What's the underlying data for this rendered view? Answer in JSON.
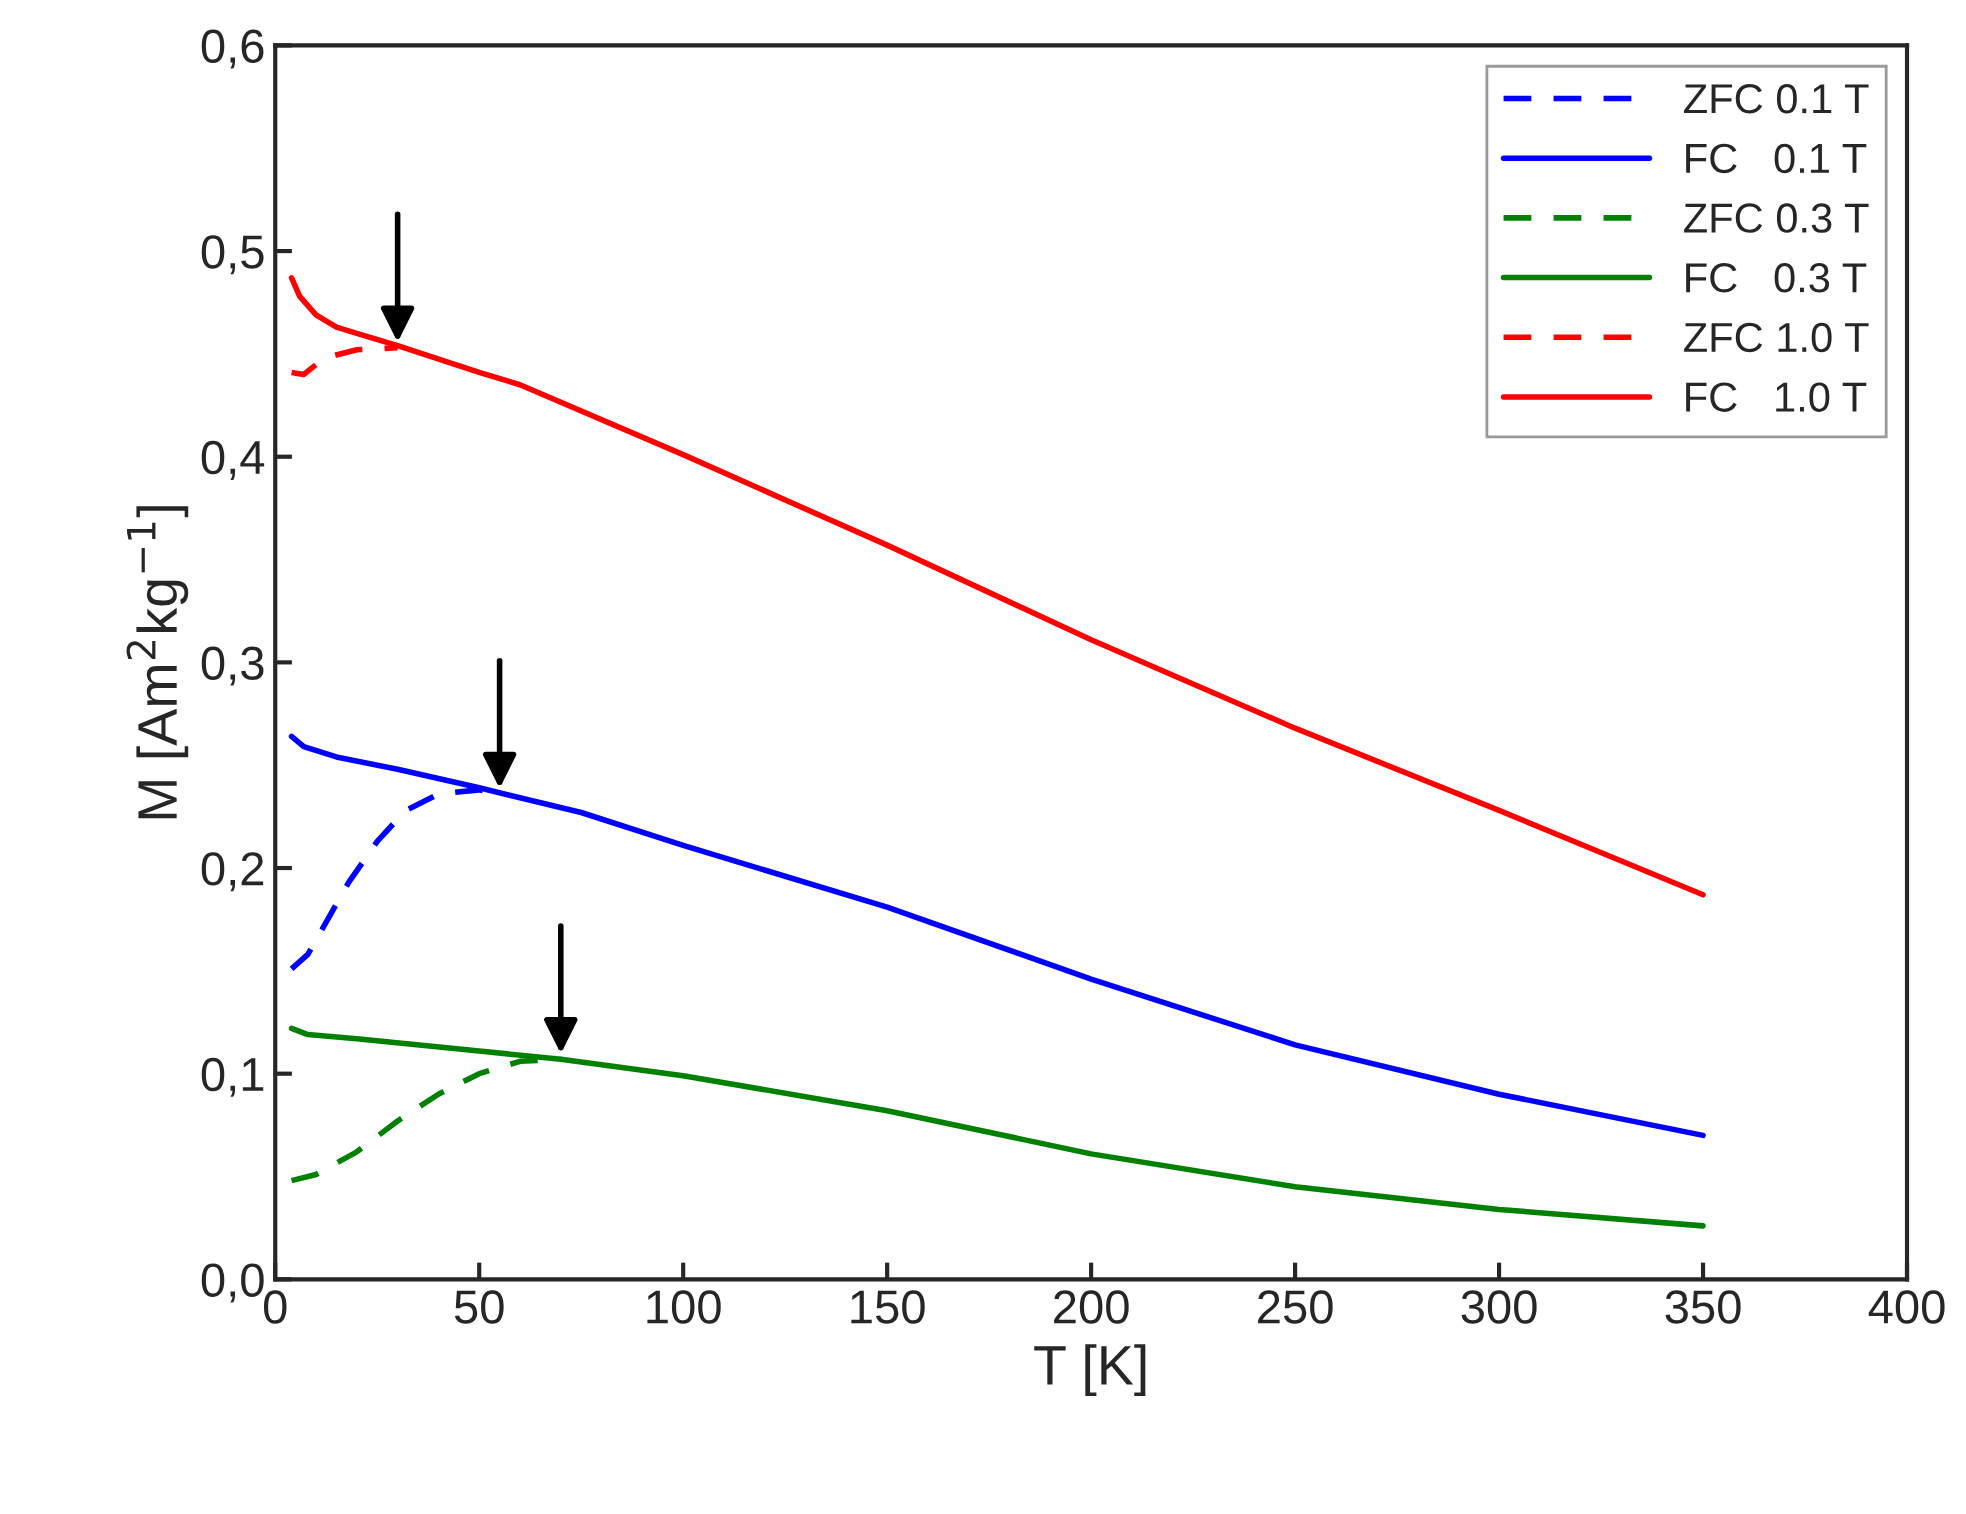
{
  "chart_data": {
    "type": "line",
    "xlabel": "T [K]",
    "ylabel": "M [Am$^{2}$kg$^{−1}$]",
    "xlim": [
      0,
      400
    ],
    "xticks": [
      0,
      50,
      100,
      150,
      200,
      250,
      300,
      350,
      400
    ],
    "ylim": [
      0,
      0.6
    ],
    "yticks": [
      {
        "value": 0.0,
        "label": "0,0"
      },
      {
        "value": 0.1,
        "label": "0,1"
      },
      {
        "value": 0.2,
        "label": "0,2"
      },
      {
        "value": 0.3,
        "label": "0,3"
      },
      {
        "value": 0.4,
        "label": "0,4"
      },
      {
        "value": 0.5,
        "label": "0,5"
      },
      {
        "value": 0.6,
        "label": "0,6"
      }
    ],
    "legend": "top right",
    "grid": false,
    "series": [
      {
        "name": "ZFC 0.1 T",
        "color": "#0000ff",
        "line_style": "dashed",
        "x": [
          4,
          8,
          12,
          18,
          25,
          32,
          40,
          50,
          55
        ],
        "values": [
          0.151,
          0.158,
          0.172,
          0.193,
          0.213,
          0.228,
          0.236,
          0.238,
          0.236
        ]
      },
      {
        "name": "FC   0.1 T",
        "color": "#0000ff",
        "line_style": "solid",
        "x": [
          4,
          7,
          15,
          30,
          50,
          75,
          100,
          150,
          200,
          250,
          300,
          350
        ],
        "values": [
          0.264,
          0.259,
          0.254,
          0.248,
          0.239,
          0.227,
          0.211,
          0.181,
          0.146,
          0.114,
          0.09,
          0.07
        ]
      },
      {
        "name": "ZFC 0.3 T",
        "color": "#008000",
        "line_style": "dashed",
        "x": [
          4,
          10,
          20,
          30,
          40,
          50,
          60,
          70
        ],
        "values": [
          0.048,
          0.051,
          0.062,
          0.077,
          0.09,
          0.1,
          0.106,
          0.107
        ]
      },
      {
        "name": "FC   0.3 T",
        "color": "#008000",
        "line_style": "solid",
        "x": [
          4,
          8,
          20,
          50,
          70,
          100,
          150,
          200,
          250,
          300,
          350
        ],
        "values": [
          0.122,
          0.119,
          0.117,
          0.111,
          0.107,
          0.099,
          0.082,
          0.061,
          0.045,
          0.034,
          0.026
        ]
      },
      {
        "name": "ZFC 1.0 T",
        "color": "#ff0000",
        "line_style": "dashed",
        "x": [
          4,
          7,
          12,
          20,
          30
        ],
        "values": [
          0.441,
          0.44,
          0.448,
          0.452,
          0.453
        ]
      },
      {
        "name": "FC   1.0 T",
        "color": "#ff0000",
        "line_style": "solid",
        "x": [
          4,
          6,
          10,
          15,
          20,
          30,
          50,
          60,
          100,
          150,
          200,
          250,
          300,
          350
        ],
        "values": [
          0.487,
          0.478,
          0.469,
          0.463,
          0.46,
          0.454,
          0.441,
          0.435,
          0.401,
          0.357,
          0.311,
          0.268,
          0.228,
          0.187
        ]
      }
    ]
  }
}
